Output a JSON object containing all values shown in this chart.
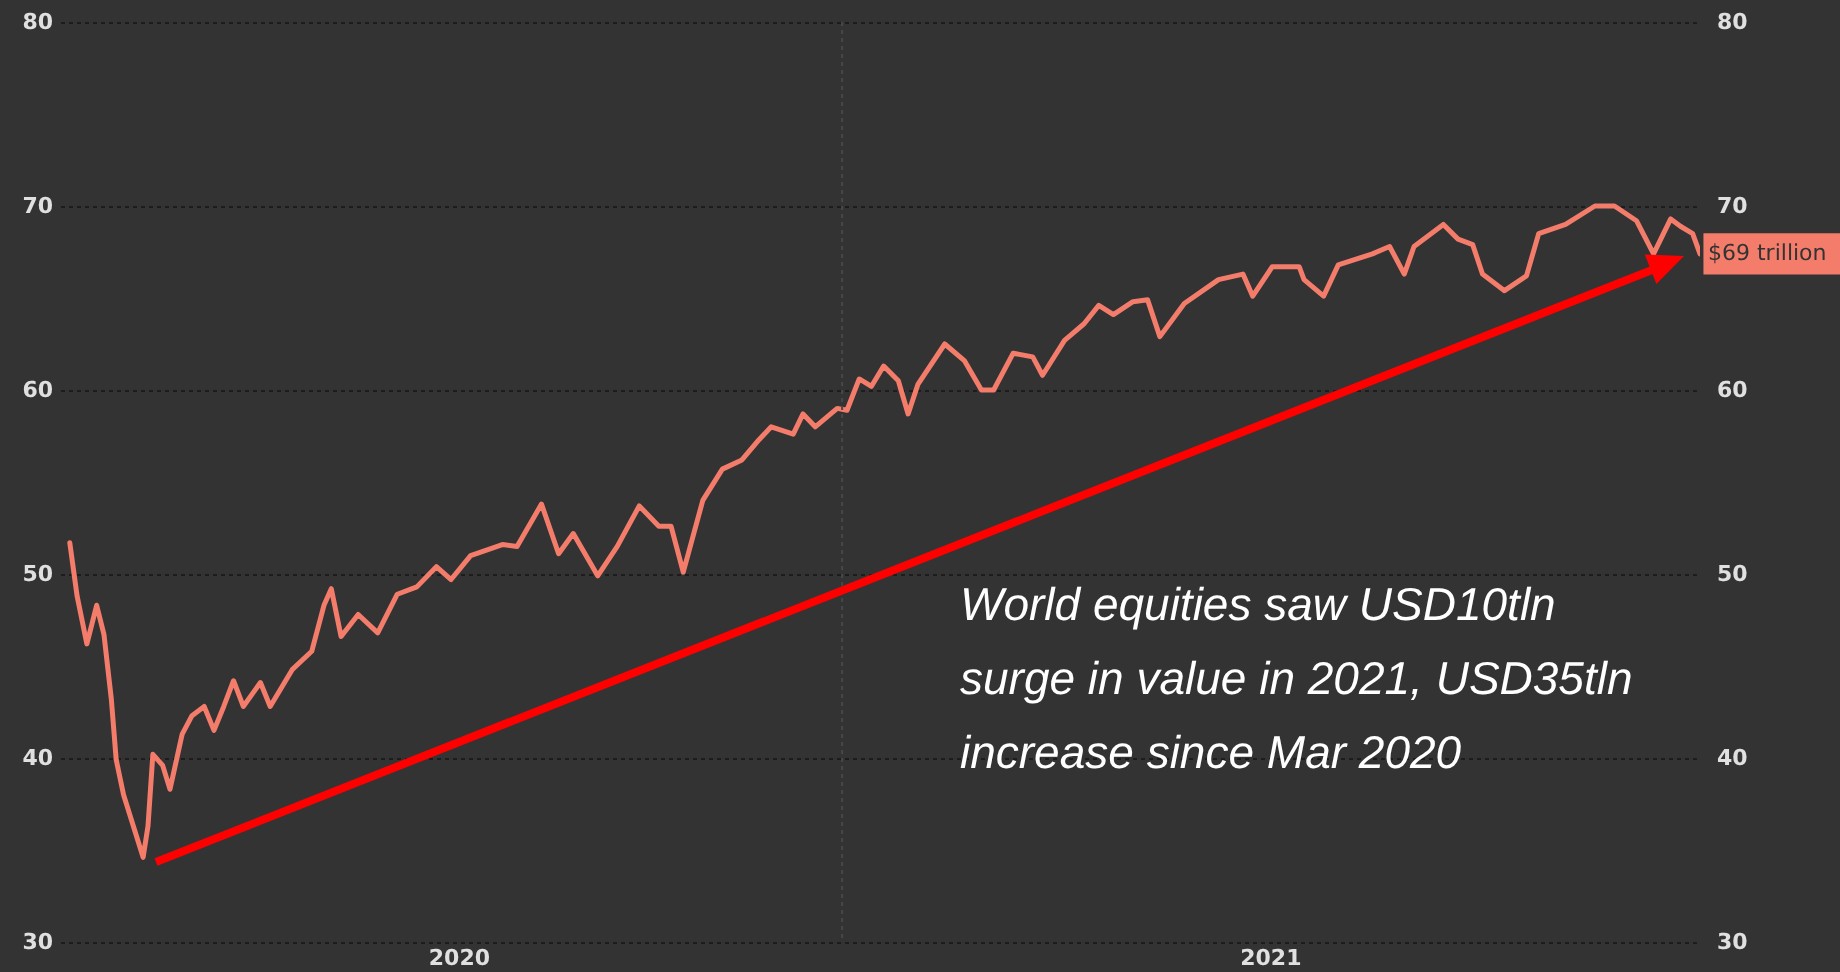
{
  "chart_data": {
    "type": "line",
    "color": "#f47c6a",
    "x": [
      "2020-02-20",
      "2020-02-23",
      "2020-02-27",
      "2020-03-02",
      "2020-03-05",
      "2020-03-08",
      "2020-03-10",
      "2020-03-13",
      "2020-03-17",
      "2020-03-21",
      "2020-03-23",
      "2020-03-25",
      "2020-03-29",
      "2020-04-01",
      "2020-04-06",
      "2020-04-10",
      "2020-04-15",
      "2020-04-19",
      "2020-04-23",
      "2020-04-27",
      "2020-05-01",
      "2020-05-08",
      "2020-05-12",
      "2020-05-21",
      "2020-05-29",
      "2020-06-03",
      "2020-06-06",
      "2020-06-10",
      "2020-06-17",
      "2020-06-25",
      "2020-07-03",
      "2020-07-11",
      "2020-07-19",
      "2020-07-25",
      "2020-08-02",
      "2020-08-15",
      "2020-08-21",
      "2020-08-31",
      "2020-09-07",
      "2020-09-13",
      "2020-09-23",
      "2020-10-01",
      "2020-10-10",
      "2020-10-18",
      "2020-10-23",
      "2020-10-28",
      "2020-11-05",
      "2020-11-13",
      "2020-11-21",
      "2020-11-28",
      "2020-12-03",
      "2020-12-12",
      "2020-12-16",
      "2020-12-21",
      "2020-12-30",
      "2021-01-03",
      "2021-01-08",
      "2021-01-13",
      "2021-01-18",
      "2021-01-24",
      "2021-01-28",
      "2021-02-01",
      "2021-02-12",
      "2021-02-20",
      "2021-02-27",
      "2021-03-04",
      "2021-03-12",
      "2021-03-20",
      "2021-03-24",
      "2021-04-02",
      "2021-04-10",
      "2021-04-16",
      "2021-04-22",
      "2021-04-30",
      "2021-05-06",
      "2021-05-11",
      "2021-05-21",
      "2021-06-04",
      "2021-06-14",
      "2021-06-18",
      "2021-06-26",
      "2021-07-07",
      "2021-07-09",
      "2021-07-17",
      "2021-07-23",
      "2021-08-06",
      "2021-08-13",
      "2021-08-19",
      "2021-08-23",
      "2021-09-04",
      "2021-09-10",
      "2021-09-16",
      "2021-09-20",
      "2021-09-29",
      "2021-10-08",
      "2021-10-13",
      "2021-10-24",
      "2021-11-05",
      "2021-11-13",
      "2021-11-22",
      "2021-11-29",
      "2021-12-06",
      "2021-12-10",
      "2021-12-15",
      "2021-12-18"
    ],
    "values": [
      51.7,
      48.8,
      46.2,
      48.3,
      46.7,
      43.2,
      39.9,
      38.0,
      36.3,
      34.6,
      36.3,
      40.2,
      39.6,
      38.3,
      41.3,
      42.3,
      42.8,
      41.5,
      42.8,
      44.2,
      42.8,
      44.1,
      42.8,
      44.8,
      45.8,
      48.3,
      49.2,
      46.6,
      47.8,
      46.8,
      48.9,
      49.3,
      50.4,
      49.7,
      51.0,
      51.6,
      51.5,
      53.8,
      51.1,
      52.2,
      49.9,
      51.5,
      53.7,
      52.6,
      52.6,
      50.1,
      54.0,
      55.7,
      56.2,
      57.3,
      58.0,
      57.6,
      58.7,
      58.0,
      59.0,
      58.9,
      60.6,
      60.2,
      61.3,
      60.5,
      58.7,
      60.3,
      62.5,
      61.6,
      60.0,
      60.0,
      62.0,
      61.8,
      60.8,
      62.7,
      63.6,
      64.6,
      64.1,
      64.8,
      64.9,
      62.9,
      64.7,
      66.0,
      66.3,
      65.1,
      66.7,
      66.7,
      66.0,
      65.1,
      66.8,
      67.4,
      67.8,
      66.3,
      67.8,
      69.0,
      68.2,
      67.9,
      66.3,
      65.4,
      66.2,
      68.5,
      69.0,
      70.0,
      70.0,
      69.2,
      67.4,
      69.3,
      68.9,
      68.5,
      67.4
    ],
    "xlim": [
      "2020-02-16",
      "2021-12-18"
    ],
    "xticks": [
      {
        "value": "2020-07-28",
        "label": "2020"
      },
      {
        "value": "2021-06-25",
        "label": "2021"
      }
    ],
    "ylim": [
      30,
      80
    ],
    "yticks": [
      30,
      40,
      50,
      60,
      70,
      80
    ],
    "y2lim": [
      30,
      80
    ],
    "y2ticks": [
      30,
      40,
      50,
      60,
      70,
      80
    ],
    "grid": "y",
    "ref_lines": [
      {
        "axis": "x",
        "value": "2021-01-01",
        "color": "#474747",
        "line_style": "dotted"
      }
    ],
    "annotations": [
      "World equities saw USD10tln surge in value in 2021, USD35tln increase since Mar 2020",
      {
        "text": "$69 trillion",
        "x": "2021-12-18",
        "y": 67.4
      }
    ]
  }
}
